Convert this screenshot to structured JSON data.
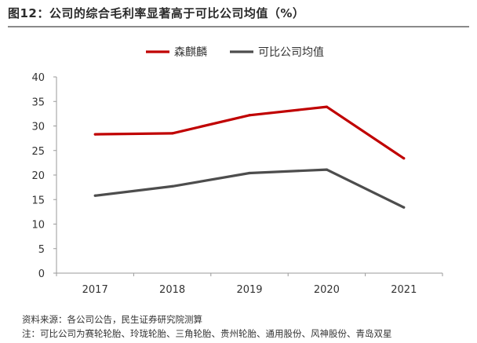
{
  "title": "图12：公司的综合毛利率显著高于可比公司均值（%）",
  "chart_data": {
    "type": "line",
    "title": "图12：公司的综合毛利率显著高于可比公司均值（%）",
    "xlabel": "",
    "ylabel": "",
    "categories": [
      "2017",
      "2018",
      "2019",
      "2020",
      "2021"
    ],
    "ylim": [
      0,
      40
    ],
    "yticks": [
      0,
      5,
      10,
      15,
      20,
      25,
      30,
      35,
      40
    ],
    "grid": false,
    "legend_position": "top-center",
    "series": [
      {
        "name": "森麒麟",
        "color": "#c00000",
        "values": [
          28.3,
          28.5,
          32.2,
          33.9,
          23.4
        ]
      },
      {
        "name": "可比公司均值",
        "color": "#4d4d4d",
        "values": [
          15.8,
          17.7,
          20.4,
          21.1,
          13.4
        ]
      }
    ]
  },
  "footnotes": {
    "source": "资料来源：各公司公告，民生证券研究院测算",
    "note": "注：可比公司为赛轮轮胎、玲珑轮胎、三角轮胎、贵州轮胎、通用股份、风神股份、青岛双星"
  }
}
